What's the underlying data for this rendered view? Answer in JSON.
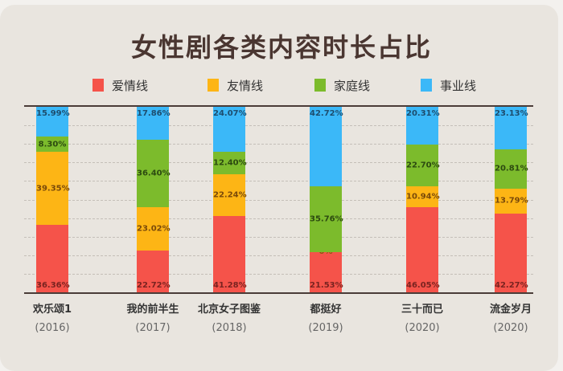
{
  "chart_data": {
    "type": "bar",
    "stacked": true,
    "normalized": true,
    "title": "女性剧各类内容时长占比",
    "xlabel": "",
    "ylabel": "",
    "ylim": [
      0,
      100
    ],
    "grid": true,
    "legend_position": "top",
    "categories": [
      "欢乐颂1",
      "我的前半生",
      "北京女子图鉴",
      "都挺好",
      "三十而已",
      "流金岁月"
    ],
    "years": [
      "(2016)",
      "(2017)",
      "(2018)",
      "(2019)",
      "(2020)",
      "(2020)"
    ],
    "series": [
      {
        "name": "爱情线",
        "color": "#f5534a",
        "values": [
          36.36,
          22.72,
          41.28,
          21.53,
          46.05,
          42.27
        ],
        "labels": [
          "36.36%",
          "22.72%",
          "41.28%",
          "21.53%",
          "46.05%",
          "42.27%"
        ]
      },
      {
        "name": "友情线",
        "color": "#fdb515",
        "values": [
          39.35,
          23.02,
          22.24,
          0,
          10.94,
          13.79
        ],
        "labels": [
          "39.35%",
          "23.02%",
          "22.24%",
          "0%",
          "10.94%",
          "13.79%"
        ]
      },
      {
        "name": "家庭线",
        "color": "#7cbb2c",
        "values": [
          8.3,
          36.4,
          12.4,
          35.76,
          22.7,
          20.81
        ],
        "labels": [
          "8.30%",
          "36.40%",
          "12.40%",
          "35.76%",
          "22.70%",
          "20.81%"
        ]
      },
      {
        "name": "事业线",
        "color": "#3bb8f8",
        "values": [
          15.99,
          17.86,
          24.07,
          42.72,
          20.31,
          23.13
        ],
        "labels": [
          "15.99%",
          "17.86%",
          "24.07%",
          "42.72%",
          "20.31%",
          "23.13%"
        ]
      }
    ]
  },
  "header": {
    "title": "女性剧各类内容时长占比"
  },
  "legend": [
    {
      "label": "爱情线",
      "color": "#f5534a"
    },
    {
      "label": "友情线",
      "color": "#fdb515"
    },
    {
      "label": "家庭线",
      "color": "#7cbb2c"
    },
    {
      "label": "事业线",
      "color": "#3bb8f8"
    }
  ],
  "x_axis": [
    {
      "name": "欢乐颂1",
      "year": "(2016)"
    },
    {
      "name": "我的前半生",
      "year": "(2017)"
    },
    {
      "name": "北京女子图鉴",
      "year": "(2018)"
    },
    {
      "name": "都挺好",
      "year": "(2019)"
    },
    {
      "name": "三十而已",
      "year": "(2020)"
    },
    {
      "name": "流金岁月",
      "year": "(2020)"
    }
  ],
  "label_colors": {
    "爱情线": "#7a2320",
    "友情线": "#7a4a0a",
    "家庭线": "#2c4a10",
    "事业线": "#1d4d6e"
  }
}
